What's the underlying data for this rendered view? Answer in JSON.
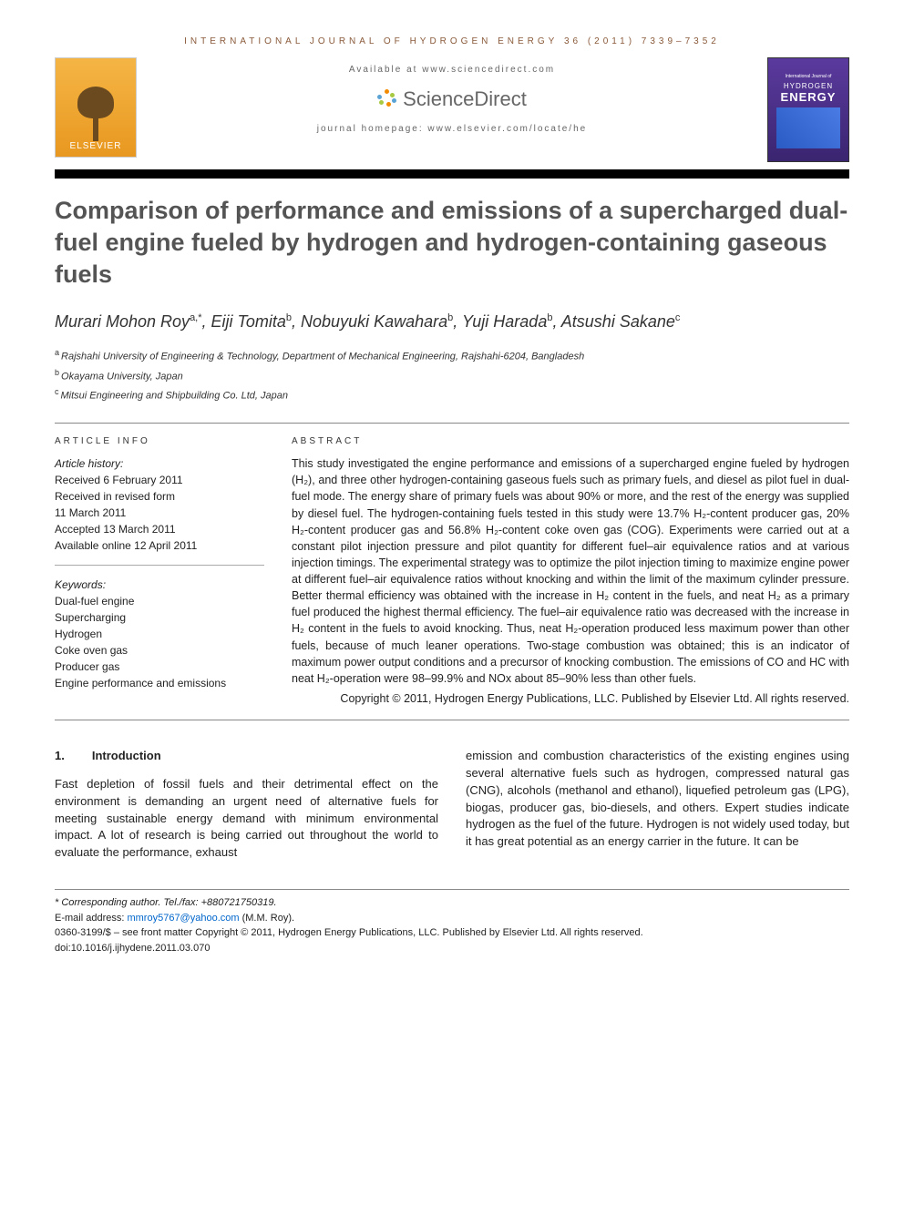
{
  "journal_header": "INTERNATIONAL JOURNAL OF HYDROGEN ENERGY 36 (2011) 7339–7352",
  "available_at": "Available at www.sciencedirect.com",
  "sciencedirect_text": "ScienceDirect",
  "homepage": "journal homepage: www.elsevier.com/locate/he",
  "elsevier_name": "ELSEVIER",
  "cover": {
    "top": "International Journal of",
    "mid": "HYDROGEN",
    "big": "ENERGY"
  },
  "title": "Comparison of performance and emissions of a supercharged dual-fuel engine fueled by hydrogen and hydrogen-containing gaseous fuels",
  "authors_html": "Murari Mohon Roy<sup>a,*</sup>, Eiji Tomita<sup>b</sup>, Nobuyuki Kawahara<sup>b</sup>, Yuji Harada<sup>b</sup>, Atsushi Sakane<sup>c</sup>",
  "affiliations": {
    "a": "Rajshahi University of Engineering & Technology, Department of Mechanical Engineering, Rajshahi-6204, Bangladesh",
    "b": "Okayama University, Japan",
    "c": "Mitsui Engineering and Shipbuilding Co. Ltd, Japan"
  },
  "info_heading": "ARTICLE INFO",
  "abstract_heading": "ABSTRACT",
  "history": {
    "label": "Article history:",
    "received": "Received 6 February 2011",
    "revised1": "Received in revised form",
    "revised2": "11 March 2011",
    "accepted": "Accepted 13 March 2011",
    "online": "Available online 12 April 2011"
  },
  "keywords": {
    "label": "Keywords:",
    "items": [
      "Dual-fuel engine",
      "Supercharging",
      "Hydrogen",
      "Coke oven gas",
      "Producer gas",
      "Engine performance and emissions"
    ]
  },
  "abstract": "This study investigated the engine performance and emissions of a supercharged engine fueled by hydrogen (H₂), and three other hydrogen-containing gaseous fuels such as primary fuels, and diesel as pilot fuel in dual-fuel mode. The energy share of primary fuels was about 90% or more, and the rest of the energy was supplied by diesel fuel. The hydrogen-containing fuels tested in this study were 13.7% H₂-content producer gas, 20% H₂-content producer gas and 56.8% H₂-content coke oven gas (COG). Experiments were carried out at a constant pilot injection pressure and pilot quantity for different fuel–air equivalence ratios and at various injection timings. The experimental strategy was to optimize the pilot injection timing to maximize engine power at different fuel–air equivalence ratios without knocking and within the limit of the maximum cylinder pressure. Better thermal efficiency was obtained with the increase in H₂ content in the fuels, and neat H₂ as a primary fuel produced the highest thermal efficiency. The fuel–air equivalence ratio was decreased with the increase in H₂ content in the fuels to avoid knocking. Thus, neat H₂-operation produced less maximum power than other fuels, because of much leaner operations. Two-stage combustion was obtained; this is an indicator of maximum power output conditions and a precursor of knocking combustion. The emissions of CO and HC with neat H₂-operation were 98–99.9% and NOx about 85–90% less than other fuels.",
  "copyright": "Copyright © 2011, Hydrogen Energy Publications, LLC. Published by Elsevier Ltd. All rights reserved.",
  "section1": {
    "num": "1.",
    "title": "Introduction"
  },
  "body_col1": "Fast depletion of fossil fuels and their detrimental effect on the environment is demanding an urgent need of alternative fuels for meeting sustainable energy demand with minimum environmental impact. A lot of research is being carried out throughout the world to evaluate the performance, exhaust",
  "body_col2": "emission and combustion characteristics of the existing engines using several alternative fuels such as hydrogen, compressed natural gas (CNG), alcohols (methanol and ethanol), liquefied petroleum gas (LPG), biogas, producer gas, bio-diesels, and others. Expert studies indicate hydrogen as the fuel of the future. Hydrogen is not widely used today, but it has great potential as an energy carrier in the future. It can be",
  "footnotes": {
    "corr": "* Corresponding author. Tel./fax: +880721750319.",
    "email_label": "E-mail address: ",
    "email": "mmroy5767@yahoo.com",
    "email_suffix": " (M.M. Roy).",
    "issn": "0360-3199/$ – see front matter Copyright © 2011, Hydrogen Energy Publications, LLC. Published by Elsevier Ltd. All rights reserved.",
    "doi": "doi:10.1016/j.ijhydene.2011.03.070"
  },
  "sd_colors": [
    "#f38b00",
    "#a8c942",
    "#5ba3d4",
    "#f38b00",
    "#a8c942",
    "#5ba3d4",
    "#f38b00"
  ]
}
